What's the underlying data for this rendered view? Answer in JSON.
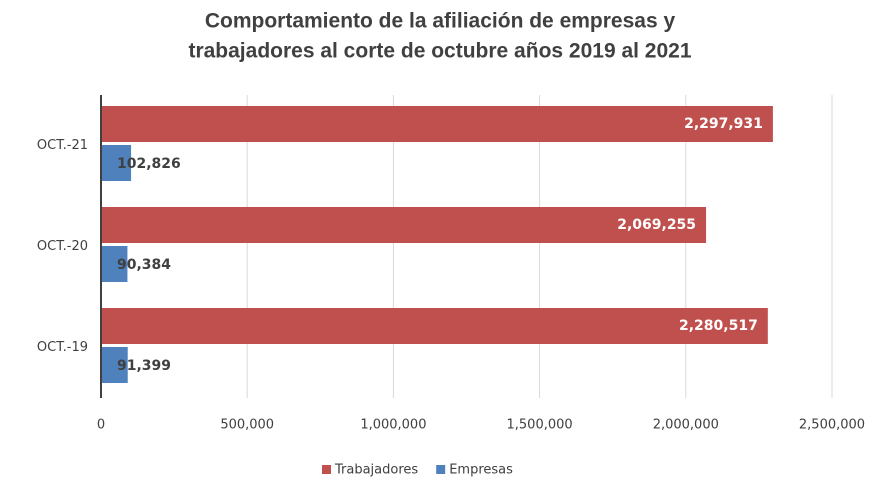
{
  "chart_data": {
    "type": "barh",
    "title": [
      "Comportamiento de la afiliación de empresas y",
      "trabajadores al corte de octubre años 2019 al 2021"
    ],
    "categories": [
      "OCT.-21",
      "OCT.-20",
      "OCT.-19"
    ],
    "series": [
      {
        "name": "Trabajadores",
        "color": "#c0504d",
        "values": [
          2297931,
          2069255,
          2280517
        ],
        "value_labels": [
          "2,297,931",
          "2,069,255",
          "2,280,517"
        ]
      },
      {
        "name": "Empresas",
        "color": "#4f81bd",
        "values": [
          102826,
          90384,
          91399
        ],
        "value_labels": [
          "102,826",
          "90,384",
          "91,399"
        ]
      }
    ],
    "xlim": [
      0,
      2500000
    ],
    "xticks": [
      0,
      {
        "value": 500000,
        "label": "500,000"
      },
      {
        "value": 1000000,
        "label": "1,000,000"
      },
      {
        "value": 1500000,
        "label": "1,500,000"
      },
      {
        "value": 2000000,
        "label": "2,000,000"
      },
      {
        "value": 2500000,
        "label": "2,500,000"
      }
    ],
    "grid": true,
    "legend": "bottom"
  }
}
